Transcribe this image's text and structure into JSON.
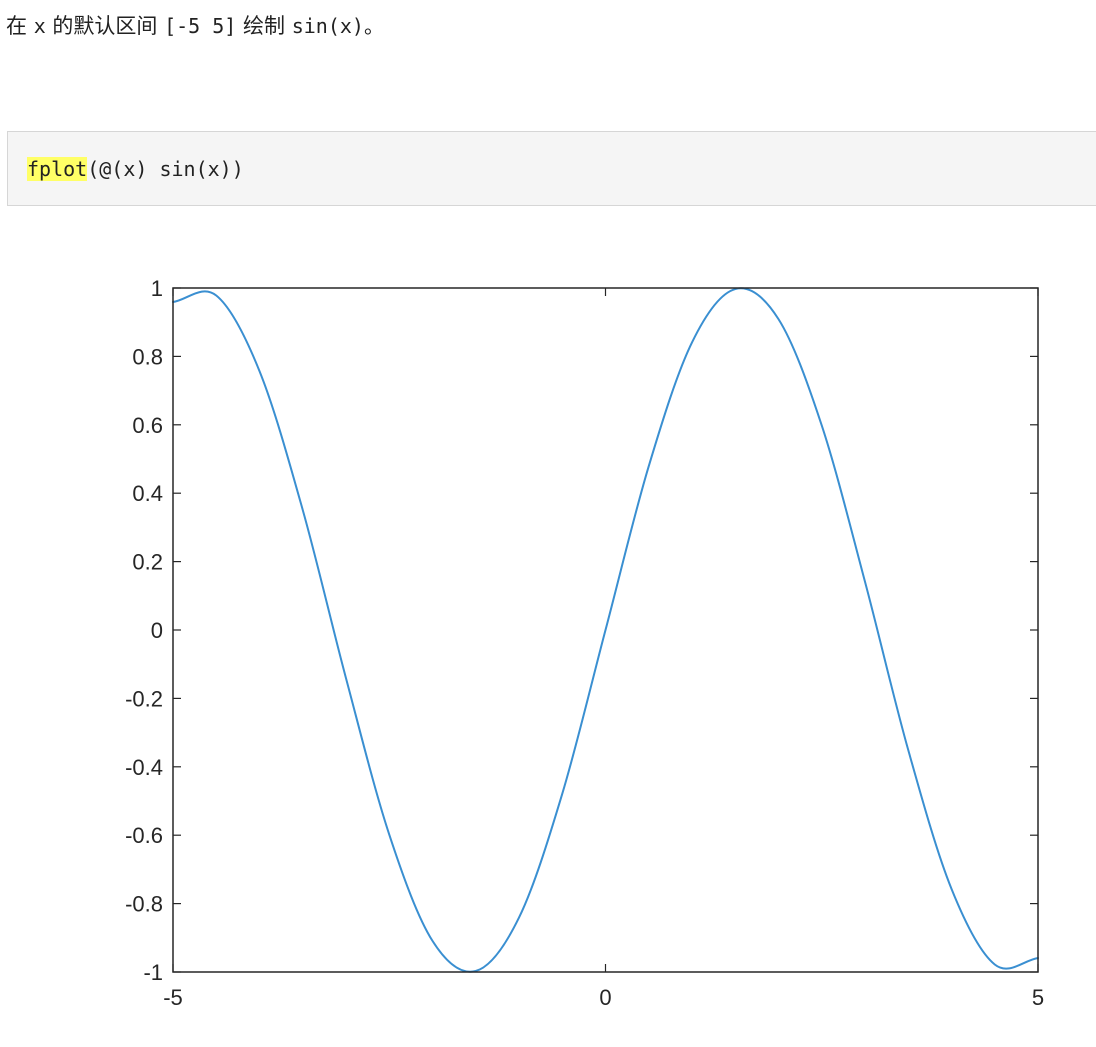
{
  "intro": {
    "p1": "在 ",
    "var": "x",
    "p2": " 的默认区间 ",
    "interval": "[-5 5]",
    "p3": " 绘制 ",
    "func": "sin(x)",
    "p4": "。"
  },
  "code": {
    "fn": "fplot",
    "args": "(@(x) sin(x))"
  },
  "colors": {
    "line": "#3a8fd1",
    "axes": "#262626",
    "code_highlight": "#ffff66"
  },
  "chart_data": {
    "type": "line",
    "function": "sin(x)",
    "xlim": [
      -5,
      5
    ],
    "ylim": [
      -1,
      1
    ],
    "x_ticks": [
      -5,
      0,
      5
    ],
    "x_tick_labels": [
      "-5",
      "0",
      "5"
    ],
    "y_ticks": [
      1,
      0.8,
      0.6,
      0.4,
      0.2,
      0,
      -0.2,
      -0.4,
      -0.6,
      -0.8,
      -1
    ],
    "y_tick_labels": [
      "1",
      "0.8",
      "0.6",
      "0.4",
      "0.2",
      "0",
      "-0.2",
      "-0.4",
      "-0.6",
      "-0.8",
      "-1"
    ],
    "series": [
      {
        "x": [
          -5,
          -4.5,
          -4,
          -3.5,
          -3,
          -2.5,
          -2,
          -1.5,
          -1,
          -0.5,
          0,
          0.5,
          1,
          1.5,
          2,
          2.5,
          3,
          3.5,
          4,
          4.5,
          5
        ],
        "y": [
          0.959,
          0.978,
          0.757,
          0.351,
          -0.141,
          -0.598,
          -0.909,
          -0.997,
          -0.841,
          -0.479,
          0,
          0.479,
          0.841,
          0.997,
          0.909,
          0.598,
          0.141,
          -0.351,
          -0.757,
          -0.978,
          -0.959
        ]
      }
    ],
    "grid": false,
    "box": true
  }
}
